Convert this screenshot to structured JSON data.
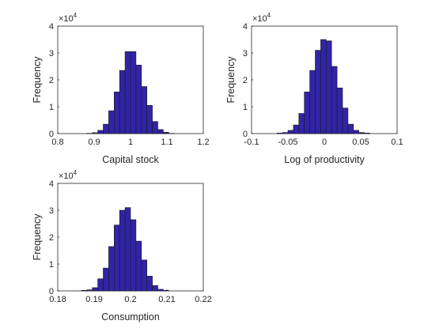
{
  "chart_data": [
    {
      "type": "bar",
      "xlabel": "Capital stock",
      "ylabel": "Frequency",
      "exponent_base": "×10",
      "exponent_power": "4",
      "xlim": [
        0.8,
        1.2
      ],
      "ylim": [
        0,
        4
      ],
      "xticks": [
        "0.8",
        "0.9",
        "1",
        "1.1",
        "1.2"
      ],
      "yticks": [
        "0",
        "1",
        "2",
        "3",
        "4"
      ],
      "bar_color": "#3224a6",
      "bins": [
        {
          "x0": 0.88,
          "x1": 0.895,
          "y": 0.01
        },
        {
          "x0": 0.895,
          "x1": 0.91,
          "y": 0.03
        },
        {
          "x0": 0.91,
          "x1": 0.925,
          "y": 0.12
        },
        {
          "x0": 0.925,
          "x1": 0.94,
          "y": 0.35
        },
        {
          "x0": 0.94,
          "x1": 0.955,
          "y": 0.85
        },
        {
          "x0": 0.955,
          "x1": 0.97,
          "y": 1.55
        },
        {
          "x0": 0.97,
          "x1": 0.985,
          "y": 2.35
        },
        {
          "x0": 0.985,
          "x1": 1.0,
          "y": 3.05
        },
        {
          "x0": 1.0,
          "x1": 1.015,
          "y": 3.05
        },
        {
          "x0": 1.015,
          "x1": 1.03,
          "y": 2.55
        },
        {
          "x0": 1.03,
          "x1": 1.045,
          "y": 1.75
        },
        {
          "x0": 1.045,
          "x1": 1.06,
          "y": 1.05
        },
        {
          "x0": 1.06,
          "x1": 1.075,
          "y": 0.45
        },
        {
          "x0": 1.075,
          "x1": 1.09,
          "y": 0.15
        },
        {
          "x0": 1.09,
          "x1": 1.105,
          "y": 0.05
        },
        {
          "x0": 1.105,
          "x1": 1.12,
          "y": 0.01
        }
      ]
    },
    {
      "type": "bar",
      "xlabel": "Log of productivity",
      "ylabel": "Frequency",
      "exponent_base": "×10",
      "exponent_power": "4",
      "xlim": [
        -0.1,
        0.1
      ],
      "ylim": [
        0,
        4
      ],
      "xticks": [
        "-0.1",
        "-0.05",
        "0",
        "0.05",
        "0.1"
      ],
      "yticks": [
        "0",
        "1",
        "2",
        "3",
        "4"
      ],
      "bar_color": "#3224a6",
      "bins": [
        {
          "x0": -0.065,
          "x1": -0.0575,
          "y": 0.02
        },
        {
          "x0": -0.0575,
          "x1": -0.05,
          "y": 0.04
        },
        {
          "x0": -0.05,
          "x1": -0.0425,
          "y": 0.12
        },
        {
          "x0": -0.0425,
          "x1": -0.035,
          "y": 0.32
        },
        {
          "x0": -0.035,
          "x1": -0.0275,
          "y": 0.75
        },
        {
          "x0": -0.0275,
          "x1": -0.02,
          "y": 1.55
        },
        {
          "x0": -0.02,
          "x1": -0.0125,
          "y": 2.35
        },
        {
          "x0": -0.0125,
          "x1": -0.005,
          "y": 3.1
        },
        {
          "x0": -0.005,
          "x1": 0.0025,
          "y": 3.5
        },
        {
          "x0": 0.0025,
          "x1": 0.01,
          "y": 3.45
        },
        {
          "x0": 0.01,
          "x1": 0.0175,
          "y": 2.5
        },
        {
          "x0": 0.0175,
          "x1": 0.025,
          "y": 1.7
        },
        {
          "x0": 0.025,
          "x1": 0.0325,
          "y": 0.95
        },
        {
          "x0": 0.0325,
          "x1": 0.04,
          "y": 0.35
        },
        {
          "x0": 0.04,
          "x1": 0.0475,
          "y": 0.12
        },
        {
          "x0": 0.0475,
          "x1": 0.055,
          "y": 0.04
        },
        {
          "x0": 0.055,
          "x1": 0.0625,
          "y": 0.02
        }
      ]
    },
    {
      "type": "bar",
      "xlabel": "Consumption",
      "ylabel": "Frequency",
      "exponent_base": "×10",
      "exponent_power": "4",
      "xlim": [
        0.18,
        0.22
      ],
      "ylim": [
        0,
        4
      ],
      "xticks": [
        "0.18",
        "0.19",
        "0.2",
        "0.21",
        "0.22"
      ],
      "yticks": [
        "0",
        "1",
        "2",
        "3",
        "4"
      ],
      "bar_color": "#3224a6",
      "bins": [
        {
          "x0": 0.1865,
          "x1": 0.188,
          "y": 0.02
        },
        {
          "x0": 0.188,
          "x1": 0.1895,
          "y": 0.04
        },
        {
          "x0": 0.1895,
          "x1": 0.191,
          "y": 0.12
        },
        {
          "x0": 0.191,
          "x1": 0.1925,
          "y": 0.45
        },
        {
          "x0": 0.1925,
          "x1": 0.194,
          "y": 0.85
        },
        {
          "x0": 0.194,
          "x1": 0.1955,
          "y": 1.65
        },
        {
          "x0": 0.1955,
          "x1": 0.197,
          "y": 2.45
        },
        {
          "x0": 0.197,
          "x1": 0.1985,
          "y": 3.0
        },
        {
          "x0": 0.1985,
          "x1": 0.2,
          "y": 3.1
        },
        {
          "x0": 0.2,
          "x1": 0.2015,
          "y": 2.65
        },
        {
          "x0": 0.2015,
          "x1": 0.203,
          "y": 1.85
        },
        {
          "x0": 0.203,
          "x1": 0.2045,
          "y": 1.15
        },
        {
          "x0": 0.2045,
          "x1": 0.206,
          "y": 0.55
        },
        {
          "x0": 0.206,
          "x1": 0.2075,
          "y": 0.2
        },
        {
          "x0": 0.2075,
          "x1": 0.209,
          "y": 0.06
        },
        {
          "x0": 0.209,
          "x1": 0.2105,
          "y": 0.02
        }
      ]
    }
  ]
}
